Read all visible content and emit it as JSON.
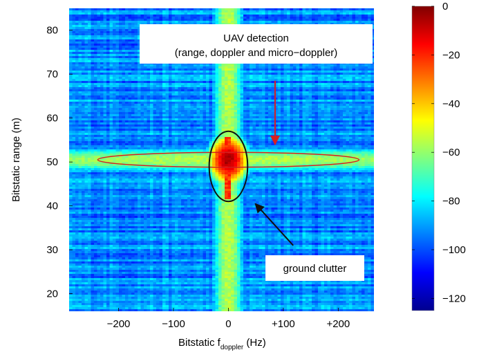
{
  "chart_data": {
    "type": "heatmap",
    "title": "",
    "xlabel_main": "Bitstatic f",
    "xlabel_sub": "doppler",
    "xlabel_unit": " (Hz)",
    "ylabel": "Bitstatic range (m)",
    "xlim": [
      -290,
      265
    ],
    "ylim": [
      16,
      85
    ],
    "x_ticks": [
      -200,
      -100,
      0,
      100,
      200
    ],
    "x_tick_labels": [
      "−200",
      "−100",
      "0",
      "+100",
      "+200"
    ],
    "y_ticks": [
      20,
      30,
      40,
      50,
      60,
      70,
      80
    ],
    "y_tick_labels": [
      "20",
      "30",
      "40",
      "50",
      "60",
      "70",
      "80"
    ],
    "colorbar": {
      "range": [
        -125,
        0
      ],
      "ticks": [
        0,
        -20,
        -40,
        -60,
        -80,
        -100,
        -120
      ],
      "tick_labels": [
        "0",
        "−20",
        "−40",
        "−60",
        "−80",
        "−100",
        "−120"
      ],
      "colormap": "jet"
    },
    "features": {
      "zero_doppler_column_x": 0,
      "target_range": 50.5,
      "target_peak_dB": -5,
      "background_dB": -92
    },
    "annotations": [
      {
        "id": "uav",
        "lines": [
          "UAV detection",
          "(range, doppler and micro−doppler)"
        ],
        "ellipse": {
          "cx": 0,
          "cy": 50.5,
          "rx": 238,
          "ry": 1.7
        },
        "arrow_from": [
          85,
          68.5
        ],
        "arrow_to": [
          85,
          54
        ],
        "color": "#d62020"
      },
      {
        "id": "clutter",
        "lines": [
          "ground clutter"
        ],
        "ellipse": {
          "cx": 0,
          "cy": 49,
          "rx": 35,
          "ry": 8
        },
        "arrow_from": [
          118,
          31
        ],
        "arrow_to": [
          49,
          40.5
        ],
        "color": "#111111"
      }
    ]
  }
}
